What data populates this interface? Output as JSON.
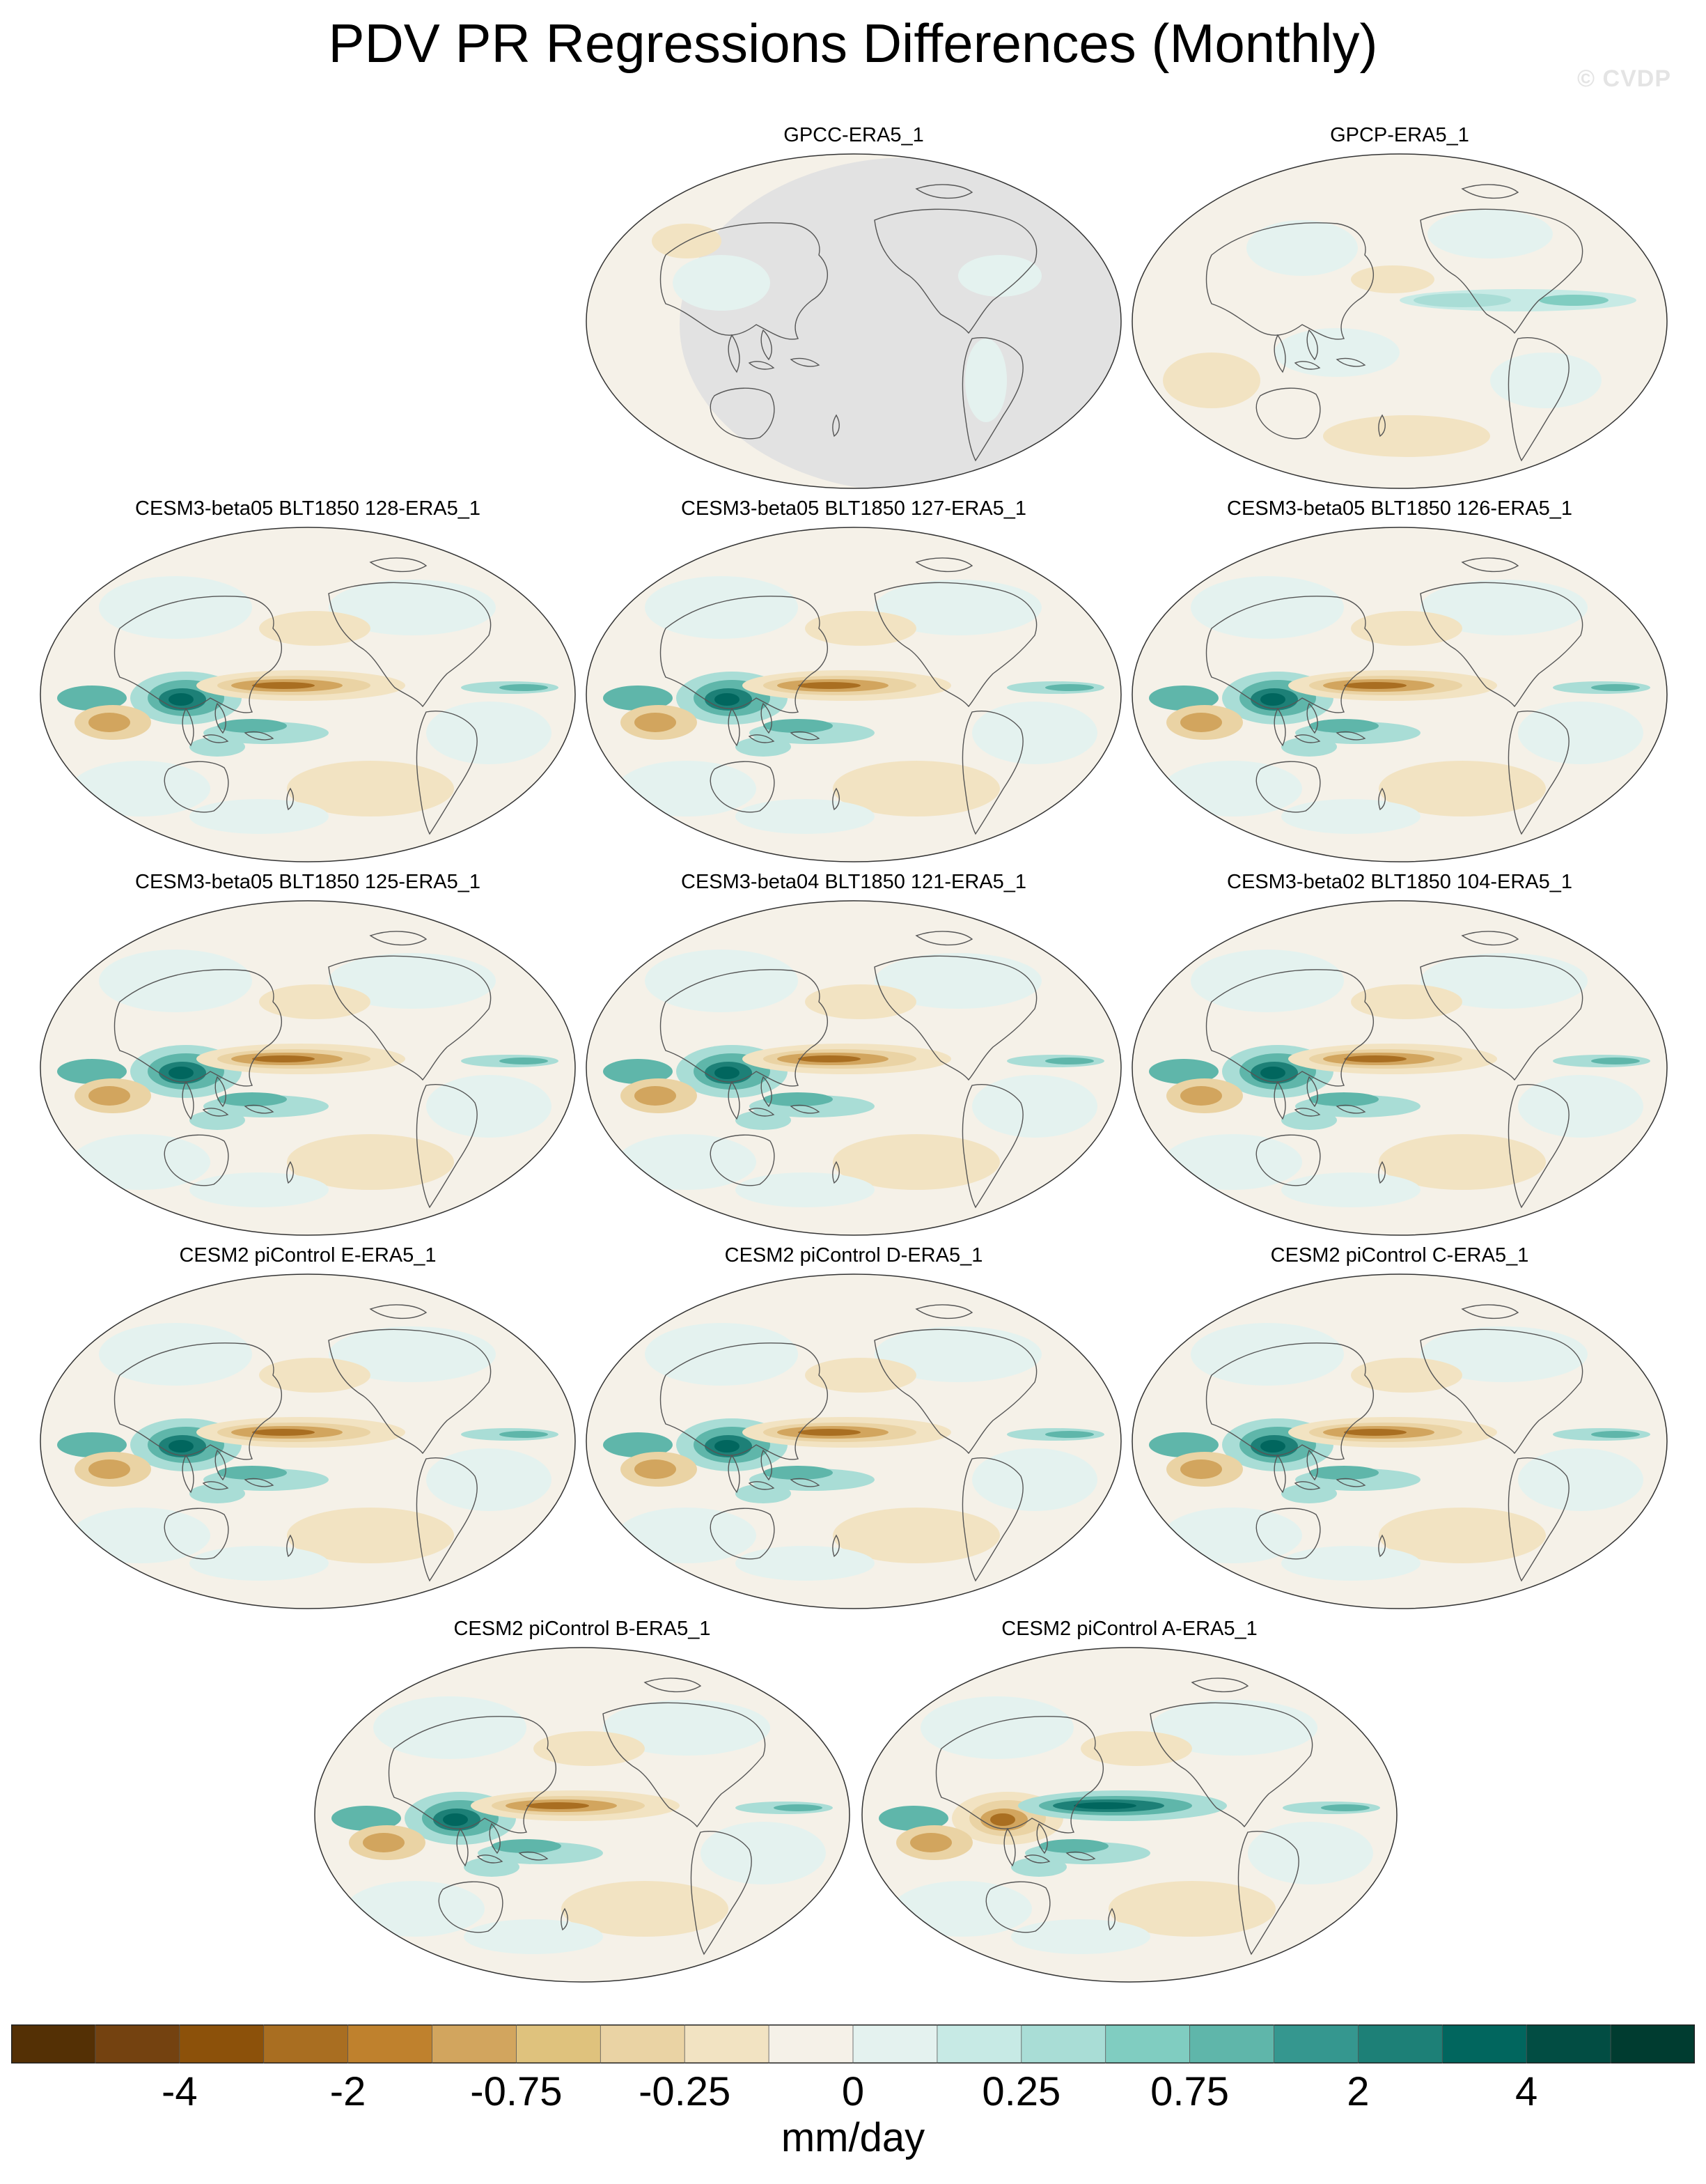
{
  "title": "PDV PR Regressions Differences (Monthly)",
  "watermark": "© CVDP",
  "panels": [
    {
      "label": "GPCC-ERA5_1",
      "pattern": "gpcc"
    },
    {
      "label": "GPCP-ERA5_1",
      "pattern": "gpcp"
    },
    {
      "label": "CESM3-beta05 BLT1850 128-ERA5_1",
      "pattern": "model"
    },
    {
      "label": "CESM3-beta05 BLT1850 127-ERA5_1",
      "pattern": "model"
    },
    {
      "label": "CESM3-beta05 BLT1850 126-ERA5_1",
      "pattern": "model"
    },
    {
      "label": "CESM3-beta05 BLT1850 125-ERA5_1",
      "pattern": "model"
    },
    {
      "label": "CESM3-beta04 BLT1850 121-ERA5_1",
      "pattern": "model"
    },
    {
      "label": "CESM3-beta02 BLT1850 104-ERA5_1",
      "pattern": "model"
    },
    {
      "label": "CESM2 piControl E-ERA5_1",
      "pattern": "model"
    },
    {
      "label": "CESM2 piControl D-ERA5_1",
      "pattern": "model"
    },
    {
      "label": "CESM2 piControl C-ERA5_1",
      "pattern": "model"
    },
    {
      "label": "CESM2 piControl B-ERA5_1",
      "pattern": "model"
    },
    {
      "label": "CESM2 piControl A-ERA5_1",
      "pattern": "model-reversed"
    }
  ],
  "colorbar": {
    "colors": [
      "#543005",
      "#744210",
      "#8c510a",
      "#a96e21",
      "#bf812d",
      "#d2a55e",
      "#dfc27d",
      "#ead3a4",
      "#f2e3c2",
      "#f5f1e8",
      "#e4f2ef",
      "#c7eae5",
      "#a9ddd6",
      "#80cdc1",
      "#5fb6aa",
      "#35978f",
      "#1d8077",
      "#01665e",
      "#024d43",
      "#003c30"
    ],
    "tick_labels": [
      "-4",
      "-2",
      "-0.75",
      "-0.25",
      "0",
      "0.25",
      "0.75",
      "2",
      "4"
    ],
    "units": "mm/day"
  },
  "icons": {
    "land_outline": "coastline-icon"
  }
}
